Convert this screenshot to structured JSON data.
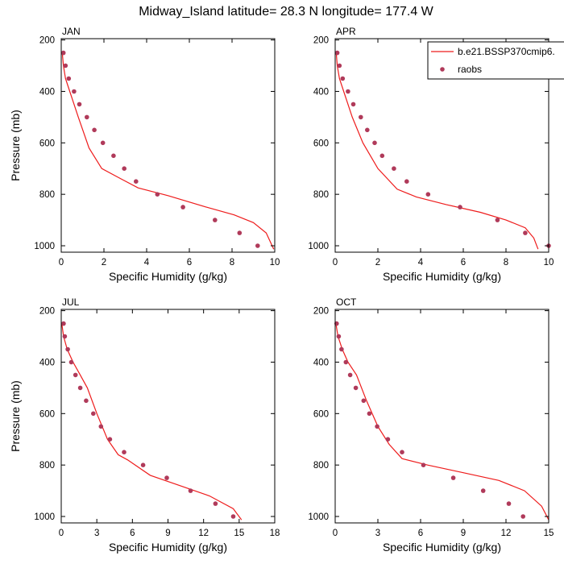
{
  "figure_title": "Midway_Island  latitude= 28.3 N longitude= 177.4 W",
  "colors": {
    "model": "#ee1c1c",
    "obs": "#b03a5a"
  },
  "chart_data": [
    {
      "type": "line",
      "panel": "JAN",
      "xlabel": "Specific Humidity (g/kg)",
      "ylabel": "Pressure (mb)",
      "xlim": [
        0,
        10
      ],
      "ylim": [
        1025,
        195
      ],
      "xticks": [
        0,
        2,
        4,
        6,
        8,
        10
      ],
      "xtick_labels": [
        "0",
        "2",
        "4",
        "6",
        "8",
        "10"
      ],
      "yticks": [
        200,
        400,
        600,
        800,
        1000
      ],
      "ytick_labels": [
        "200",
        "400",
        "600",
        "800",
        "1000"
      ],
      "model": {
        "name": "b.e21.BSSP370cmip6.",
        "x": [
          0.05,
          0.1,
          0.2,
          0.4,
          0.8,
          1.3,
          1.9,
          2.8,
          3.6,
          5.0,
          6.8,
          8.1,
          9.0,
          9.6,
          9.95
        ],
        "y": [
          250,
          300,
          350,
          400,
          500,
          620,
          700,
          740,
          775,
          805,
          850,
          880,
          910,
          950,
          1013
        ]
      },
      "obs": {
        "name": "raobs",
        "x": [
          0.1,
          0.2,
          0.35,
          0.6,
          0.85,
          1.2,
          1.55,
          1.95,
          2.45,
          2.95,
          3.5,
          4.5,
          5.7,
          7.2,
          8.35,
          9.2
        ],
        "y": [
          250,
          300,
          350,
          400,
          450,
          500,
          550,
          600,
          650,
          700,
          750,
          800,
          850,
          900,
          950,
          1000
        ]
      }
    },
    {
      "type": "line",
      "panel": "APR",
      "xlabel": "Specific Humidity (g/kg)",
      "ylabel": "",
      "xlim": [
        0,
        10
      ],
      "ylim": [
        1025,
        195
      ],
      "xticks": [
        0,
        2,
        4,
        6,
        8,
        10
      ],
      "xtick_labels": [
        "0",
        "2",
        "4",
        "6",
        "8",
        "10"
      ],
      "yticks": [
        200,
        400,
        600,
        800,
        1000
      ],
      "ytick_labels": [
        "200",
        "400",
        "600",
        "800",
        "1000"
      ],
      "model": {
        "name": "b.e21.BSSP370cmip6.",
        "x": [
          0.05,
          0.1,
          0.2,
          0.4,
          0.8,
          1.3,
          2.0,
          2.9,
          3.8,
          5.2,
          6.8,
          8.0,
          8.9,
          9.3,
          9.5
        ],
        "y": [
          250,
          300,
          350,
          400,
          500,
          600,
          700,
          780,
          810,
          840,
          870,
          900,
          930,
          970,
          1013
        ]
      },
      "obs": {
        "name": "raobs",
        "x": [
          0.1,
          0.2,
          0.35,
          0.6,
          0.85,
          1.2,
          1.5,
          1.85,
          2.2,
          2.75,
          3.35,
          4.35,
          5.85,
          7.6,
          8.9,
          10.0
        ],
        "y": [
          250,
          300,
          350,
          400,
          450,
          500,
          550,
          600,
          650,
          700,
          750,
          800,
          850,
          900,
          950,
          1000
        ]
      }
    },
    {
      "type": "line",
      "panel": "JUL",
      "xlabel": "Specific Humidity (g/kg)",
      "ylabel": "Pressure (mb)",
      "xlim": [
        0,
        18
      ],
      "ylim": [
        1025,
        195
      ],
      "xticks": [
        0,
        3,
        6,
        9,
        12,
        15,
        18
      ],
      "xtick_labels": [
        "0",
        "3",
        "6",
        "9",
        "12",
        "15",
        "18"
      ],
      "yticks": [
        200,
        400,
        600,
        800,
        1000
      ],
      "ytick_labels": [
        "200",
        "400",
        "600",
        "800",
        "1000"
      ],
      "model": {
        "name": "b.e21.BSSP370cmip6.",
        "x": [
          0.05,
          0.2,
          0.5,
          1.0,
          1.6,
          2.2,
          3.0,
          3.9,
          4.8,
          5.6,
          7.5,
          10.0,
          12.5,
          14.5,
          15.2
        ],
        "y": [
          250,
          300,
          350,
          400,
          450,
          500,
          600,
          700,
          760,
          780,
          840,
          880,
          920,
          970,
          1013
        ]
      },
      "obs": {
        "name": "raobs",
        "x": [
          0.2,
          0.3,
          0.55,
          0.85,
          1.2,
          1.6,
          2.1,
          2.7,
          3.35,
          4.1,
          5.3,
          6.9,
          8.9,
          10.9,
          13.0,
          14.5
        ],
        "y": [
          250,
          300,
          350,
          400,
          450,
          500,
          550,
          600,
          650,
          700,
          750,
          800,
          850,
          900,
          950,
          1000
        ]
      }
    },
    {
      "type": "line",
      "panel": "OCT",
      "xlabel": "Specific Humidity (g/kg)",
      "ylabel": "",
      "xlim": [
        0,
        15
      ],
      "ylim": [
        1025,
        195
      ],
      "xticks": [
        0,
        3,
        6,
        9,
        12,
        15
      ],
      "xtick_labels": [
        "0",
        "3",
        "6",
        "9",
        "12",
        "15"
      ],
      "yticks": [
        200,
        400,
        600,
        800,
        1000
      ],
      "ytick_labels": [
        "200",
        "400",
        "600",
        "800",
        "1000"
      ],
      "model": {
        "name": "b.e21.BSSP370cmip6.",
        "x": [
          0.05,
          0.2,
          0.5,
          0.9,
          1.5,
          2.2,
          3.0,
          3.8,
          4.7,
          6.5,
          9.0,
          11.5,
          13.3,
          14.5,
          15.0
        ],
        "y": [
          250,
          300,
          350,
          400,
          450,
          550,
          650,
          720,
          775,
          800,
          830,
          860,
          900,
          960,
          1013
        ]
      },
      "obs": {
        "name": "raobs",
        "x": [
          0.1,
          0.25,
          0.45,
          0.75,
          1.05,
          1.45,
          2.0,
          2.4,
          2.95,
          3.7,
          4.7,
          6.2,
          8.3,
          10.4,
          12.2,
          13.2
        ],
        "y": [
          250,
          300,
          350,
          400,
          450,
          500,
          550,
          600,
          650,
          700,
          750,
          800,
          850,
          900,
          950,
          1000
        ]
      }
    }
  ],
  "legend": {
    "model_label": "b.e21.BSSP370cmip6.",
    "obs_label": "raobs"
  }
}
